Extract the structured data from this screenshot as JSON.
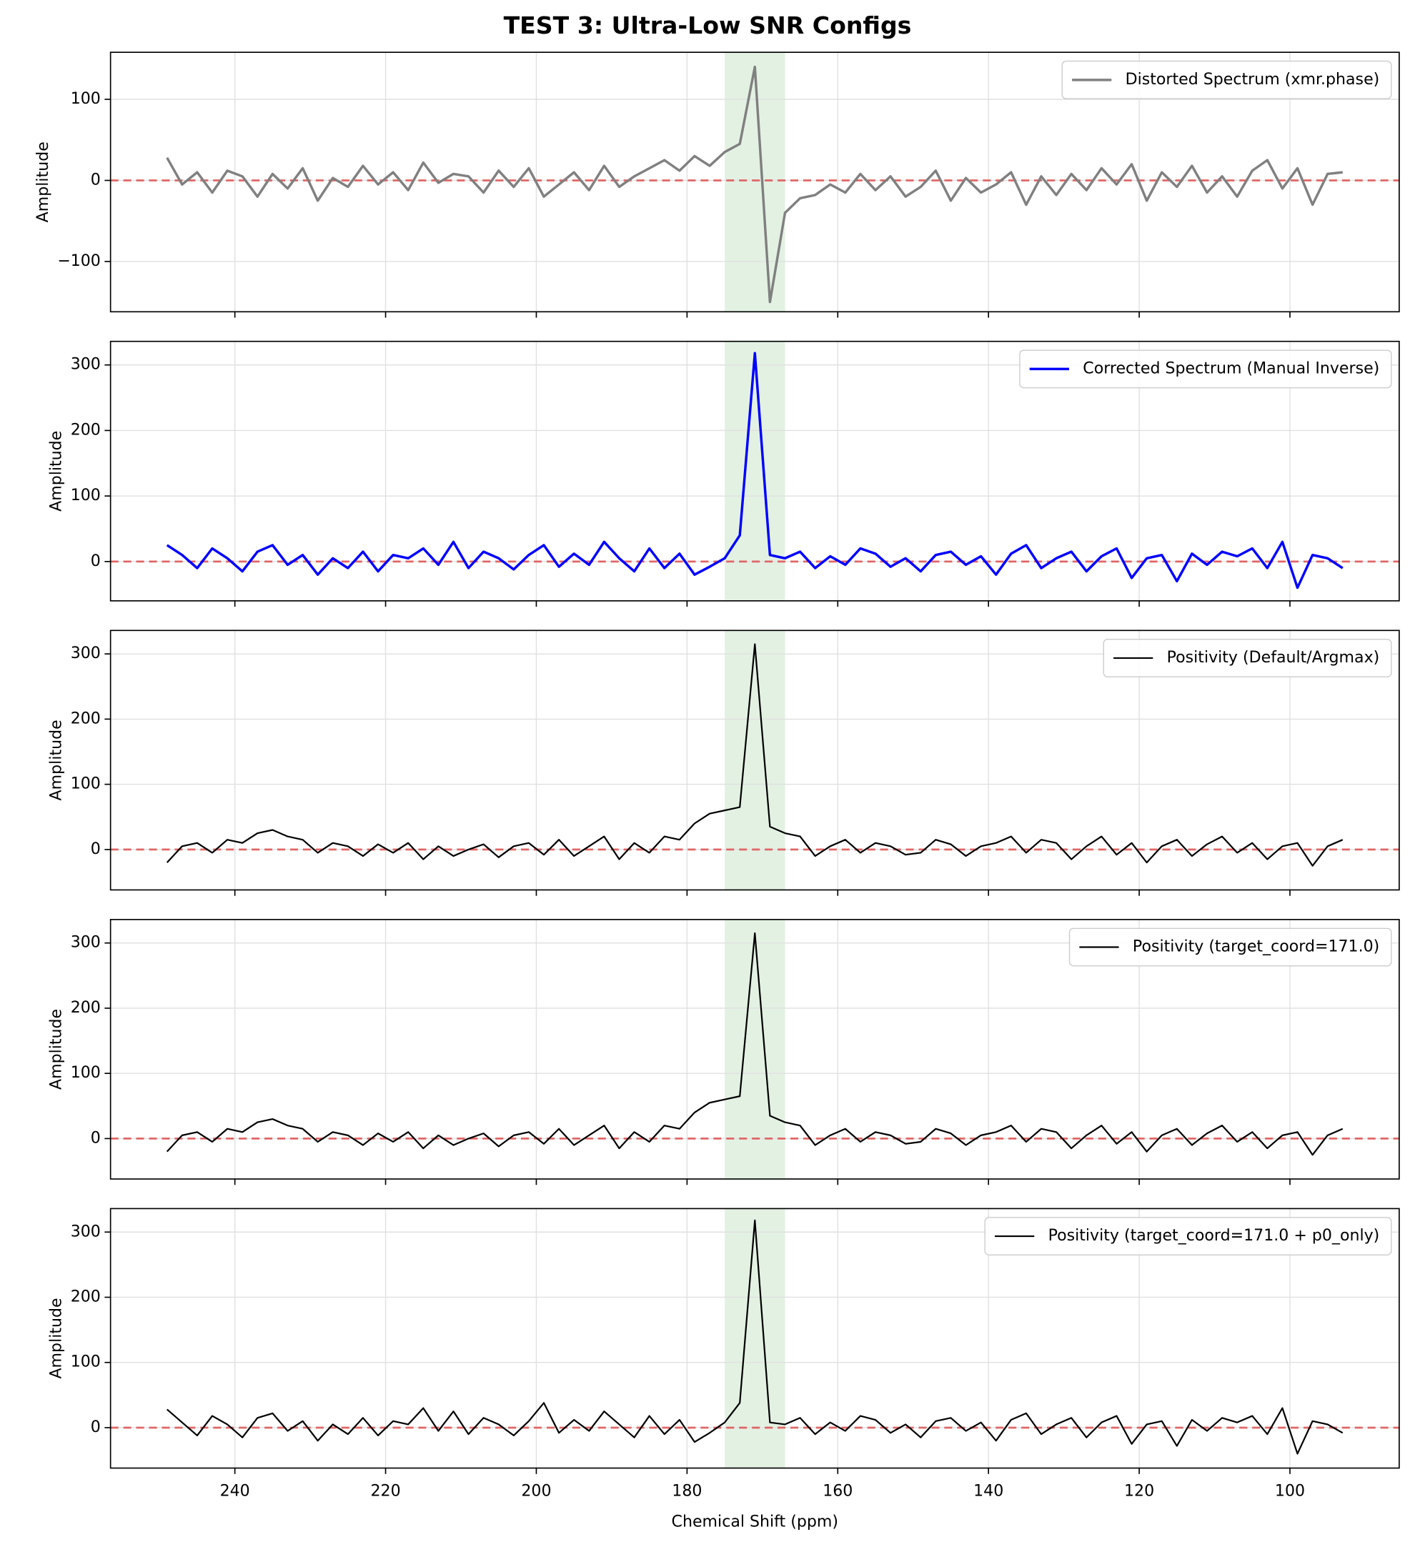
{
  "title": "TEST 3: Ultra-Low SNR Configs",
  "chart_data": [
    {
      "type": "line",
      "ylabel": "Amplitude",
      "x": [
        249,
        247,
        245,
        243,
        241,
        239,
        237,
        235,
        233,
        231,
        229,
        227,
        225,
        223,
        221,
        219,
        217,
        215,
        213,
        211,
        209,
        207,
        205,
        203,
        201,
        199,
        197,
        195,
        193,
        191,
        189,
        187,
        185,
        183,
        181,
        179,
        177,
        175,
        173,
        171,
        169,
        167,
        165,
        163,
        161,
        159,
        157,
        155,
        153,
        151,
        149,
        147,
        145,
        143,
        141,
        139,
        137,
        135,
        133,
        131,
        129,
        127,
        125,
        123,
        121,
        119,
        117,
        115,
        113,
        111,
        109,
        107,
        105,
        103,
        101,
        99,
        97,
        95,
        93
      ],
      "series": [
        {
          "name": "Distorted Spectrum (xmr.phase)",
          "color": "#808080",
          "linewidth": 2.5,
          "values": [
            28,
            -5,
            10,
            -15,
            12,
            5,
            -20,
            8,
            -10,
            15,
            -25,
            3,
            -8,
            18,
            -5,
            10,
            -12,
            22,
            -3,
            8,
            5,
            -15,
            12,
            -8,
            15,
            -20,
            -5,
            10,
            -12,
            18,
            -8,
            5,
            15,
            25,
            12,
            30,
            18,
            35,
            45,
            140,
            -150,
            -40,
            -22,
            -18,
            -5,
            -15,
            8,
            -12,
            5,
            -20,
            -8,
            12,
            -25,
            3,
            -15,
            -5,
            10,
            -30,
            5,
            -18,
            8,
            -12,
            15,
            -5,
            20,
            -25,
            10,
            -8,
            18,
            -15,
            5,
            -20,
            12,
            25,
            -10,
            15,
            -30,
            8,
            10
          ]
        }
      ],
      "xlim": [
        256.5,
        85.5
      ],
      "ylim": [
        -162,
        158
      ],
      "xticks": [
        240,
        220,
        200,
        180,
        160,
        140,
        120,
        100
      ],
      "yticks": [
        {
          "value": -100,
          "label": "−100"
        },
        0,
        100
      ],
      "grid": true,
      "legend": "upper right",
      "hline": 0,
      "hline_color": "#e06666",
      "span": [
        175,
        167
      ],
      "span_color": "#e3f1e3"
    },
    {
      "type": "line",
      "ylabel": "Amplitude",
      "x": [
        249,
        247,
        245,
        243,
        241,
        239,
        237,
        235,
        233,
        231,
        229,
        227,
        225,
        223,
        221,
        219,
        217,
        215,
        213,
        211,
        209,
        207,
        205,
        203,
        201,
        199,
        197,
        195,
        193,
        191,
        189,
        187,
        185,
        183,
        181,
        179,
        177,
        175,
        173,
        171,
        169,
        167,
        165,
        163,
        161,
        159,
        157,
        155,
        153,
        151,
        149,
        147,
        145,
        143,
        141,
        139,
        137,
        135,
        133,
        131,
        129,
        127,
        125,
        123,
        121,
        119,
        117,
        115,
        113,
        111,
        109,
        107,
        105,
        103,
        101,
        99,
        97,
        95,
        93
      ],
      "series": [
        {
          "name": "Corrected Spectrum (Manual Inverse)",
          "color": "#0000ff",
          "linewidth": 2.5,
          "values": [
            25,
            10,
            -10,
            20,
            5,
            -15,
            15,
            25,
            -5,
            10,
            -20,
            5,
            -10,
            15,
            -15,
            10,
            5,
            20,
            -5,
            30,
            -10,
            15,
            5,
            -12,
            10,
            25,
            -8,
            12,
            -5,
            30,
            5,
            -15,
            20,
            -10,
            12,
            -20,
            -8,
            5,
            40,
            318,
            10,
            5,
            15,
            -10,
            8,
            -5,
            20,
            12,
            -8,
            5,
            -15,
            10,
            15,
            -5,
            8,
            -20,
            12,
            25,
            -10,
            5,
            15,
            -15,
            8,
            20,
            -25,
            5,
            10,
            -30,
            12,
            -5,
            15,
            8,
            20,
            -10,
            30,
            -40,
            10,
            5,
            -10
          ]
        }
      ],
      "xlim": [
        256.5,
        85.5
      ],
      "ylim": [
        -60,
        336
      ],
      "xticks": [
        240,
        220,
        200,
        180,
        160,
        140,
        120,
        100
      ],
      "yticks": [
        0,
        100,
        200,
        300
      ],
      "grid": true,
      "legend": "upper right",
      "hline": 0,
      "hline_color": "#e06666",
      "span": [
        175,
        167
      ],
      "span_color": "#e3f1e3"
    },
    {
      "type": "line",
      "ylabel": "Amplitude",
      "x": [
        249,
        247,
        245,
        243,
        241,
        239,
        237,
        235,
        233,
        231,
        229,
        227,
        225,
        223,
        221,
        219,
        217,
        215,
        213,
        211,
        209,
        207,
        205,
        203,
        201,
        199,
        197,
        195,
        193,
        191,
        189,
        187,
        185,
        183,
        181,
        179,
        177,
        175,
        173,
        171,
        169,
        167,
        165,
        163,
        161,
        159,
        157,
        155,
        153,
        151,
        149,
        147,
        145,
        143,
        141,
        139,
        137,
        135,
        133,
        131,
        129,
        127,
        125,
        123,
        121,
        119,
        117,
        115,
        113,
        111,
        109,
        107,
        105,
        103,
        101,
        99,
        97,
        95,
        93
      ],
      "series": [
        {
          "name": "Positivity (Default/Argmax)",
          "color": "#000000",
          "linewidth": 1.6,
          "values": [
            -20,
            5,
            10,
            -5,
            15,
            10,
            25,
            30,
            20,
            15,
            -5,
            10,
            5,
            -10,
            8,
            -5,
            10,
            -15,
            5,
            -10,
            0,
            8,
            -12,
            5,
            10,
            -8,
            15,
            -10,
            5,
            20,
            -15,
            10,
            -5,
            20,
            15,
            40,
            55,
            60,
            65,
            315,
            35,
            25,
            20,
            -10,
            5,
            15,
            -5,
            10,
            5,
            -8,
            -5,
            15,
            8,
            -10,
            5,
            10,
            20,
            -5,
            15,
            10,
            -15,
            5,
            20,
            -8,
            10,
            -20,
            5,
            15,
            -10,
            8,
            20,
            -5,
            10,
            -15,
            5,
            10,
            -25,
            5,
            15
          ]
        }
      ],
      "xlim": [
        256.5,
        85.5
      ],
      "ylim": [
        -62,
        336
      ],
      "xticks": [
        240,
        220,
        200,
        180,
        160,
        140,
        120,
        100
      ],
      "yticks": [
        0,
        100,
        200,
        300
      ],
      "grid": true,
      "legend": "upper right",
      "hline": 0,
      "hline_color": "#e06666",
      "span": [
        175,
        167
      ],
      "span_color": "#e3f1e3"
    },
    {
      "type": "line",
      "ylabel": "Amplitude",
      "x": [
        249,
        247,
        245,
        243,
        241,
        239,
        237,
        235,
        233,
        231,
        229,
        227,
        225,
        223,
        221,
        219,
        217,
        215,
        213,
        211,
        209,
        207,
        205,
        203,
        201,
        199,
        197,
        195,
        193,
        191,
        189,
        187,
        185,
        183,
        181,
        179,
        177,
        175,
        173,
        171,
        169,
        167,
        165,
        163,
        161,
        159,
        157,
        155,
        153,
        151,
        149,
        147,
        145,
        143,
        141,
        139,
        137,
        135,
        133,
        131,
        129,
        127,
        125,
        123,
        121,
        119,
        117,
        115,
        113,
        111,
        109,
        107,
        105,
        103,
        101,
        99,
        97,
        95,
        93
      ],
      "series": [
        {
          "name": "Positivity (target_coord=171.0)",
          "color": "#000000",
          "linewidth": 1.6,
          "values": [
            -20,
            5,
            10,
            -5,
            15,
            10,
            25,
            30,
            20,
            15,
            -5,
            10,
            5,
            -10,
            8,
            -5,
            10,
            -15,
            5,
            -10,
            0,
            8,
            -12,
            5,
            10,
            -8,
            15,
            -10,
            5,
            20,
            -15,
            10,
            -5,
            20,
            15,
            40,
            55,
            60,
            65,
            315,
            35,
            25,
            20,
            -10,
            5,
            15,
            -5,
            10,
            5,
            -8,
            -5,
            15,
            8,
            -10,
            5,
            10,
            20,
            -5,
            15,
            10,
            -15,
            5,
            20,
            -8,
            10,
            -20,
            5,
            15,
            -10,
            8,
            20,
            -5,
            10,
            -15,
            5,
            10,
            -25,
            5,
            15
          ]
        }
      ],
      "xlim": [
        256.5,
        85.5
      ],
      "ylim": [
        -62,
        336
      ],
      "xticks": [
        240,
        220,
        200,
        180,
        160,
        140,
        120,
        100
      ],
      "yticks": [
        0,
        100,
        200,
        300
      ],
      "grid": true,
      "legend": "upper right",
      "hline": 0,
      "hline_color": "#e06666",
      "span": [
        175,
        167
      ],
      "span_color": "#e3f1e3"
    },
    {
      "type": "line",
      "ylabel": "Amplitude",
      "xlabel": "Chemical Shift (ppm)",
      "x": [
        249,
        247,
        245,
        243,
        241,
        239,
        237,
        235,
        233,
        231,
        229,
        227,
        225,
        223,
        221,
        219,
        217,
        215,
        213,
        211,
        209,
        207,
        205,
        203,
        201,
        199,
        197,
        195,
        193,
        191,
        189,
        187,
        185,
        183,
        181,
        179,
        177,
        175,
        173,
        171,
        169,
        167,
        165,
        163,
        161,
        159,
        157,
        155,
        153,
        151,
        149,
        147,
        145,
        143,
        141,
        139,
        137,
        135,
        133,
        131,
        129,
        127,
        125,
        123,
        121,
        119,
        117,
        115,
        113,
        111,
        109,
        107,
        105,
        103,
        101,
        99,
        97,
        95,
        93
      ],
      "series": [
        {
          "name": "Positivity (target_coord=171.0 + p0_only)",
          "color": "#000000",
          "linewidth": 1.6,
          "values": [
            28,
            8,
            -12,
            18,
            5,
            -15,
            15,
            22,
            -5,
            10,
            -20,
            5,
            -10,
            15,
            -12,
            10,
            5,
            30,
            -5,
            25,
            -10,
            15,
            5,
            -12,
            10,
            38,
            -8,
            12,
            -5,
            25,
            5,
            -15,
            18,
            -10,
            12,
            -22,
            -8,
            8,
            38,
            318,
            8,
            5,
            15,
            -10,
            8,
            -5,
            18,
            12,
            -8,
            5,
            -15,
            10,
            15,
            -5,
            8,
            -20,
            12,
            22,
            -10,
            5,
            15,
            -15,
            8,
            18,
            -25,
            5,
            10,
            -28,
            12,
            -5,
            15,
            8,
            18,
            -10,
            30,
            -40,
            10,
            5,
            -8
          ]
        }
      ],
      "xlim": [
        256.5,
        85.5
      ],
      "ylim": [
        -62,
        336
      ],
      "xticks": [
        240,
        220,
        200,
        180,
        160,
        140,
        120,
        100
      ],
      "yticks": [
        0,
        100,
        200,
        300
      ],
      "grid": true,
      "legend": "upper right",
      "hline": 0,
      "hline_color": "#e06666",
      "span": [
        175,
        167
      ],
      "span_color": "#e3f1e3"
    }
  ]
}
